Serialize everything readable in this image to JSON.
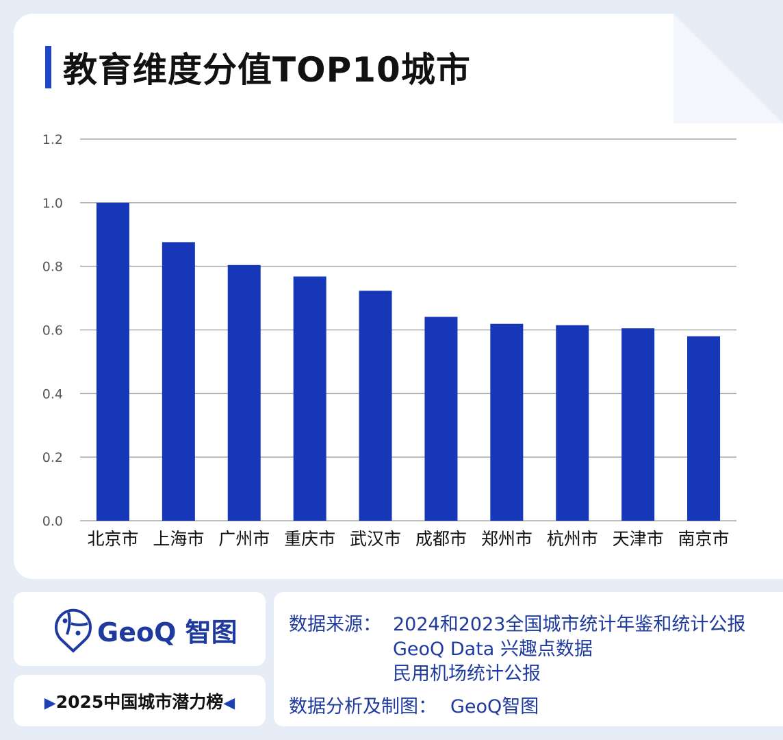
{
  "title": "教育维度分值TOP10城市",
  "chart_data": {
    "type": "bar",
    "title": "教育维度分值TOP10城市",
    "categories": [
      "北京市",
      "上海市",
      "广州市",
      "重庆市",
      "武汉市",
      "成都市",
      "郑州市",
      "杭州市",
      "天津市",
      "南京市"
    ],
    "values": [
      1.0,
      0.876,
      0.804,
      0.768,
      0.723,
      0.641,
      0.619,
      0.615,
      0.605,
      0.58
    ],
    "yticks": [
      "0.0",
      "0.2",
      "0.4",
      "0.6",
      "0.8",
      "1.0",
      "1.2"
    ],
    "ylim": [
      0,
      1.2
    ],
    "grid": true,
    "bar_color": "#1537b8",
    "xlabel": "",
    "ylabel": ""
  },
  "footer": {
    "logo_text": "GeoQ 智图",
    "badge": "2025中国城市潜力榜",
    "source_label": "数据来源：",
    "sources": [
      "2024和2023全国城市统计年鉴和统计公报",
      "GeoQ Data 兴趣点数据",
      "民用机场统计公报"
    ],
    "credit_label": "数据分析及制图：",
    "credit": "GeoQ智图"
  }
}
